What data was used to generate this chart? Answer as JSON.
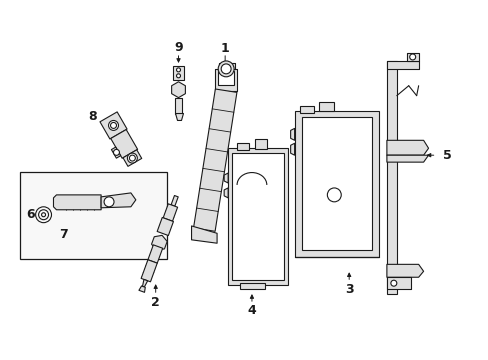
{
  "bg_color": "#ffffff",
  "lc": "#1a1a1a",
  "fc": "#ffffff",
  "lgray": "#e0e0e0",
  "figsize": [
    4.89,
    3.6
  ],
  "dpi": 100
}
